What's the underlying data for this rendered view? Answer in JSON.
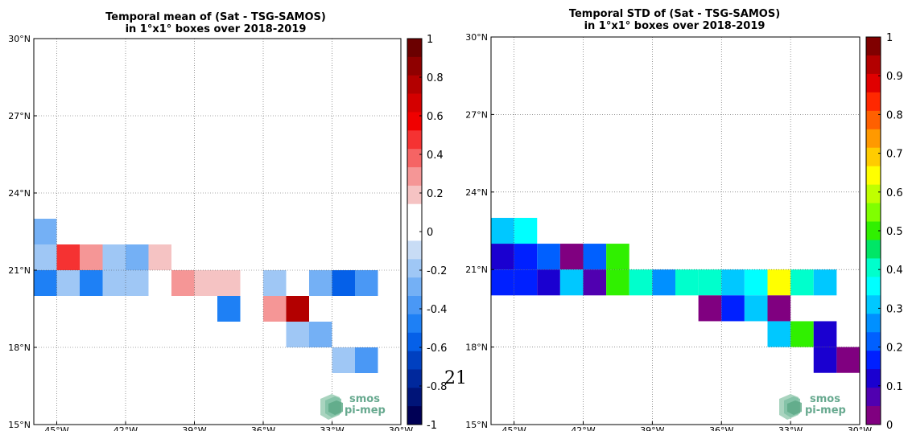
{
  "page_number": "21",
  "logo": {
    "line1": "smos",
    "line2": "pi-mep"
  },
  "chart_data": [
    {
      "type": "heatmap",
      "title_line1": "Temporal mean of (Sat - TSG-SAMOS)",
      "title_line2": "in 1°x1° boxes over 2018-2019",
      "xlim": [
        -46,
        -30
      ],
      "ylim": [
        15,
        30
      ],
      "grid": true,
      "xticks": [
        {
          "v": -45,
          "label": "45°W"
        },
        {
          "v": -42,
          "label": "42°W"
        },
        {
          "v": -39,
          "label": "39°W"
        },
        {
          "v": -36,
          "label": "36°W"
        },
        {
          "v": -33,
          "label": "33°W"
        },
        {
          "v": -30,
          "label": "30°W"
        }
      ],
      "yticks": [
        {
          "v": 15,
          "label": "15°N"
        },
        {
          "v": 18,
          "label": "18°N"
        },
        {
          "v": 21,
          "label": "21°N"
        },
        {
          "v": 24,
          "label": "24°N"
        },
        {
          "v": 27,
          "label": "27°N"
        },
        {
          "v": 30,
          "label": "30°N"
        }
      ],
      "colorbar": {
        "range": [
          -1,
          1
        ],
        "ticks": [
          "1",
          "0.8",
          "0.6",
          "0.4",
          "0.2",
          "0",
          "-0.2",
          "-0.4",
          "-0.6",
          "-0.8",
          "-1"
        ],
        "colors": [
          "#6b0000",
          "#8f0000",
          "#b30000",
          "#d40000",
          "#f00000",
          "#f53232",
          "#f56464",
          "#f59696",
          "#f5c3c3",
          "#ffffff",
          "#ffffff",
          "#c8dcf5",
          "#9fc7f5",
          "#74b0f5",
          "#4a98f5",
          "#1e80f5",
          "#0560e8",
          "#0040c0",
          "#00289c",
          "#001478",
          "#000055"
        ]
      },
      "cells": [
        {
          "lon": -46,
          "lat": 22,
          "value": -0.3
        },
        {
          "lon": -46,
          "lat": 21,
          "value": -0.15
        },
        {
          "lon": -45,
          "lat": 21,
          "value": 0.45
        },
        {
          "lon": -44,
          "lat": 21,
          "value": 0.3
        },
        {
          "lon": -43,
          "lat": 21,
          "value": -0.15
        },
        {
          "lon": -42,
          "lat": 21,
          "value": -0.3
        },
        {
          "lon": -41,
          "lat": 21,
          "value": 0.2
        },
        {
          "lon": -46,
          "lat": 20,
          "value": -0.5
        },
        {
          "lon": -45,
          "lat": 20,
          "value": -0.15
        },
        {
          "lon": -44,
          "lat": 20,
          "value": -0.5
        },
        {
          "lon": -43,
          "lat": 20,
          "value": -0.15
        },
        {
          "lon": -42,
          "lat": 20,
          "value": -0.15
        },
        {
          "lon": -40,
          "lat": 20,
          "value": 0.3
        },
        {
          "lon": -39,
          "lat": 20,
          "value": 0.2
        },
        {
          "lon": -38,
          "lat": 20,
          "value": 0.2
        },
        {
          "lon": -36,
          "lat": 20,
          "value": -0.15
        },
        {
          "lon": -34,
          "lat": 20,
          "value": -0.3
        },
        {
          "lon": -33,
          "lat": 20,
          "value": -0.6
        },
        {
          "lon": -32,
          "lat": 20,
          "value": -0.4
        },
        {
          "lon": -38,
          "lat": 19,
          "value": -0.45
        },
        {
          "lon": -36,
          "lat": 19,
          "value": 0.3
        },
        {
          "lon": -35,
          "lat": 19,
          "value": 0.75
        },
        {
          "lon": -35,
          "lat": 18,
          "value": -0.15
        },
        {
          "lon": -34,
          "lat": 18,
          "value": -0.3
        },
        {
          "lon": -33,
          "lat": 17,
          "value": -0.15
        },
        {
          "lon": -32,
          "lat": 17,
          "value": -0.4
        }
      ]
    },
    {
      "type": "heatmap",
      "title_line1": "Temporal STD of (Sat - TSG-SAMOS)",
      "title_line2": "in 1°x1° boxes over 2018-2019",
      "xlim": [
        -46,
        -30
      ],
      "ylim": [
        15,
        30
      ],
      "grid": true,
      "xticks": [
        {
          "v": -45,
          "label": "45°W"
        },
        {
          "v": -42,
          "label": "42°W"
        },
        {
          "v": -39,
          "label": "39°W"
        },
        {
          "v": -36,
          "label": "36°W"
        },
        {
          "v": -33,
          "label": "33°W"
        },
        {
          "v": -30,
          "label": "30°W"
        }
      ],
      "yticks": [
        {
          "v": 15,
          "label": "15°N"
        },
        {
          "v": 18,
          "label": "18°N"
        },
        {
          "v": 21,
          "label": "21°N"
        },
        {
          "v": 24,
          "label": "24°N"
        },
        {
          "v": 27,
          "label": "27°N"
        },
        {
          "v": 30,
          "label": "30°N"
        }
      ],
      "colorbar": {
        "range": [
          0,
          1
        ],
        "ticks": [
          "1",
          "0.9",
          "0.8",
          "0.7",
          "0.6",
          "0.5",
          "0.4",
          "0.3",
          "0.2",
          "0.1",
          "0"
        ],
        "colors": [
          "#800000",
          "#b30000",
          "#e00000",
          "#ff2800",
          "#ff6000",
          "#ff9900",
          "#ffcc00",
          "#ffff00",
          "#c0ff00",
          "#80ff00",
          "#30f000",
          "#00e666",
          "#00ffcc",
          "#00ffff",
          "#00c8ff",
          "#0090ff",
          "#0060ff",
          "#0020ff",
          "#1a00d0",
          "#5000b0",
          "#800080"
        ]
      },
      "cells": [
        {
          "lon": -46,
          "lat": 22,
          "value": 0.32
        },
        {
          "lon": -45,
          "lat": 22,
          "value": 0.36
        },
        {
          "lon": -46,
          "lat": 21,
          "value": 0.12
        },
        {
          "lon": -45,
          "lat": 21,
          "value": 0.17
        },
        {
          "lon": -44,
          "lat": 21,
          "value": 0.2
        },
        {
          "lon": -43,
          "lat": 21,
          "value": 0.02
        },
        {
          "lon": -42,
          "lat": 21,
          "value": 0.2
        },
        {
          "lon": -41,
          "lat": 21,
          "value": 0.48
        },
        {
          "lon": -46,
          "lat": 20,
          "value": 0.17
        },
        {
          "lon": -45,
          "lat": 20,
          "value": 0.17
        },
        {
          "lon": -44,
          "lat": 20,
          "value": 0.12
        },
        {
          "lon": -43,
          "lat": 20,
          "value": 0.32
        },
        {
          "lon": -42,
          "lat": 20,
          "value": 0.07
        },
        {
          "lon": -41,
          "lat": 20,
          "value": 0.48
        },
        {
          "lon": -40,
          "lat": 20,
          "value": 0.42
        },
        {
          "lon": -39,
          "lat": 20,
          "value": 0.27
        },
        {
          "lon": -38,
          "lat": 20,
          "value": 0.42
        },
        {
          "lon": -37,
          "lat": 20,
          "value": 0.42
        },
        {
          "lon": -36,
          "lat": 20,
          "value": 0.32
        },
        {
          "lon": -35,
          "lat": 20,
          "value": 0.36
        },
        {
          "lon": -34,
          "lat": 20,
          "value": 0.65
        },
        {
          "lon": -33,
          "lat": 20,
          "value": 0.42
        },
        {
          "lon": -32,
          "lat": 20,
          "value": 0.32
        },
        {
          "lon": -37,
          "lat": 19,
          "value": 0.02
        },
        {
          "lon": -36,
          "lat": 19,
          "value": 0.17
        },
        {
          "lon": -35,
          "lat": 19,
          "value": 0.32
        },
        {
          "lon": -34,
          "lat": 19,
          "value": 0.02
        },
        {
          "lon": -34,
          "lat": 18,
          "value": 0.32
        },
        {
          "lon": -33,
          "lat": 18,
          "value": 0.48
        },
        {
          "lon": -32,
          "lat": 18,
          "value": 0.12
        },
        {
          "lon": -32,
          "lat": 17,
          "value": 0.12
        },
        {
          "lon": -31,
          "lat": 17,
          "value": 0.02
        }
      ]
    }
  ]
}
